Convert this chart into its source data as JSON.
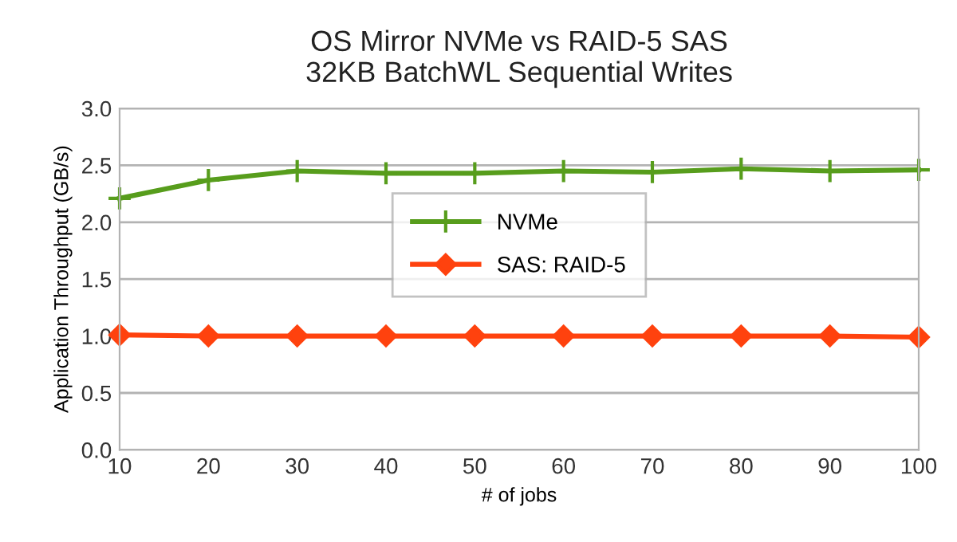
{
  "chart_data": {
    "type": "line",
    "title": "OS Mirror NVMe vs RAID-5 SAS\n32KB BatchWL Sequential Writes",
    "xlabel": "# of jobs",
    "ylabel": "Application Throughput (GB/s)",
    "x": [
      10,
      20,
      30,
      40,
      50,
      60,
      70,
      80,
      90,
      100
    ],
    "series": [
      {
        "name": "NVMe",
        "color": "#579d1c",
        "marker": "cross",
        "values": [
          2.21,
          2.37,
          2.45,
          2.43,
          2.43,
          2.45,
          2.44,
          2.47,
          2.45,
          2.46
        ]
      },
      {
        "name": "SAS: RAID-5",
        "color": "#ff420e",
        "marker": "diamond",
        "values": [
          1.01,
          1.0,
          1.0,
          1.0,
          1.0,
          1.0,
          1.0,
          1.0,
          1.0,
          0.99
        ]
      }
    ],
    "xlim": [
      10,
      100
    ],
    "xticks": [
      10,
      20,
      30,
      40,
      50,
      60,
      70,
      80,
      90,
      100
    ],
    "ylim": [
      0,
      3
    ],
    "yticks": [
      {
        "value": 0,
        "label": "0.0"
      },
      0.5,
      {
        "value": 1,
        "label": "1.0"
      },
      1.5,
      {
        "value": 2,
        "label": "2.0"
      },
      2.5,
      {
        "value": 3,
        "label": "3.0"
      }
    ],
    "grid": "y",
    "legend": "center",
    "line_style": "solid"
  }
}
